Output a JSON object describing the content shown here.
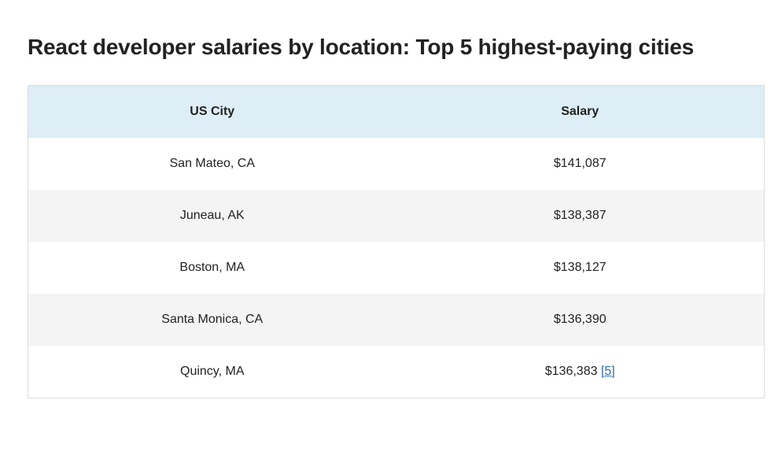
{
  "title": "React developer salaries by location: Top 5 highest-paying cities",
  "table": {
    "headers": {
      "city": "US City",
      "salary": "Salary"
    },
    "rows": [
      {
        "city": "San Mateo, CA",
        "salary": "$141,087"
      },
      {
        "city": "Juneau, AK",
        "salary": "$138,387"
      },
      {
        "city": "Boston, MA",
        "salary": "$138,127"
      },
      {
        "city": "Santa Monica, CA",
        "salary": "$136,390"
      },
      {
        "city": "Quincy, MA",
        "salary": "$136,383",
        "citation": "5"
      }
    ]
  },
  "colors": {
    "header_bg": "#ddeef6",
    "stripe_bg": "#f4f4f4",
    "link": "#2f6db5"
  }
}
